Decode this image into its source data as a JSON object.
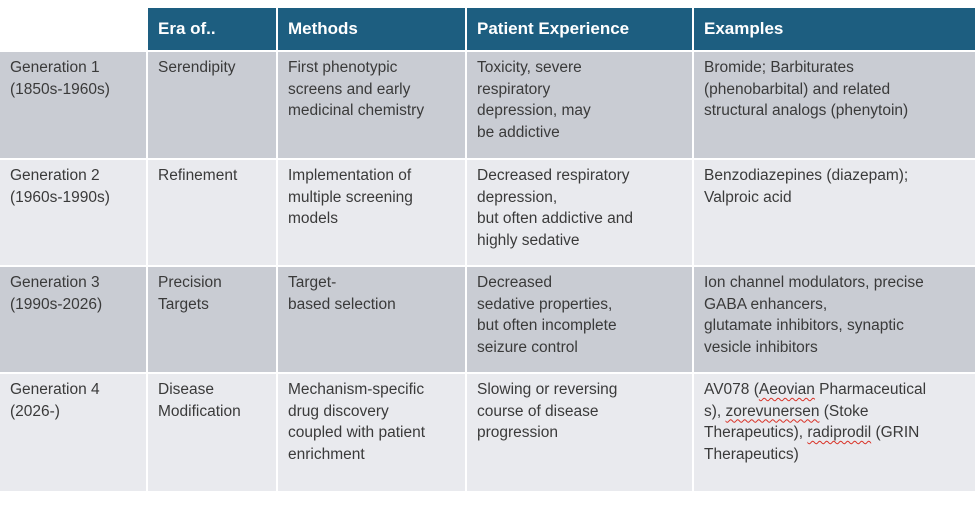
{
  "table": {
    "header": {
      "corner": "",
      "columns": [
        "Era of..",
        "Methods",
        "Patient Experience",
        "Examples"
      ]
    },
    "rows": [
      {
        "cells": [
          "Generation 1\n(1850s-1960s)",
          "Serendipity",
          "First phenotypic\nscreens and early\nmedicinal chemistry",
          "Toxicity, severe\nrespiratory\ndepression, may\nbe addictive",
          "Bromide; Barbiturates\n(phenobarbital) and related\nstructural analogs (phenytoin)"
        ]
      },
      {
        "cells": [
          "Generation 2\n(1960s-1990s)",
          "Refinement",
          "Implementation of\nmultiple screening\nmodels",
          "Decreased respiratory\ndepression,\nbut often addictive and\nhighly sedative",
          "Benzodiazepines (diazepam);\nValproic acid"
        ]
      },
      {
        "cells": [
          "Generation 3\n(1990s-2026)",
          "Precision\nTargets",
          "Target-\nbased selection",
          "Decreased\nsedative properties,\nbut often incomplete\nseizure control",
          "Ion channel modulators, precise\nGABA enhancers,\nglutamate inhibitors, synaptic\nvesicle inhibitors"
        ]
      },
      {
        "cells": [
          "Generation 4\n(2026-)",
          "Disease\nModification",
          "Mechanism-specific\ndrug discovery\ncoupled with patient\nenrichment",
          "Slowing or reversing\ncourse of disease\nprogression",
          "AV078 (Aeovian Pharmaceutical\ns), zorevunersen (Stoke\nTherapeutics), radiprodil (GRIN\nTherapeutics)"
        ]
      }
    ],
    "spellcheck_words": [
      "Aeovian",
      "zorevunersen",
      "radiprodil"
    ],
    "colors": {
      "header_bg": "#1d5e80",
      "row_odd_bg": "#c9ccd3",
      "row_even_bg": "#e9eaee",
      "body_text": "#3a3a3a",
      "header_text": "#ffffff",
      "spellcheck_underline": "#d93025"
    }
  }
}
